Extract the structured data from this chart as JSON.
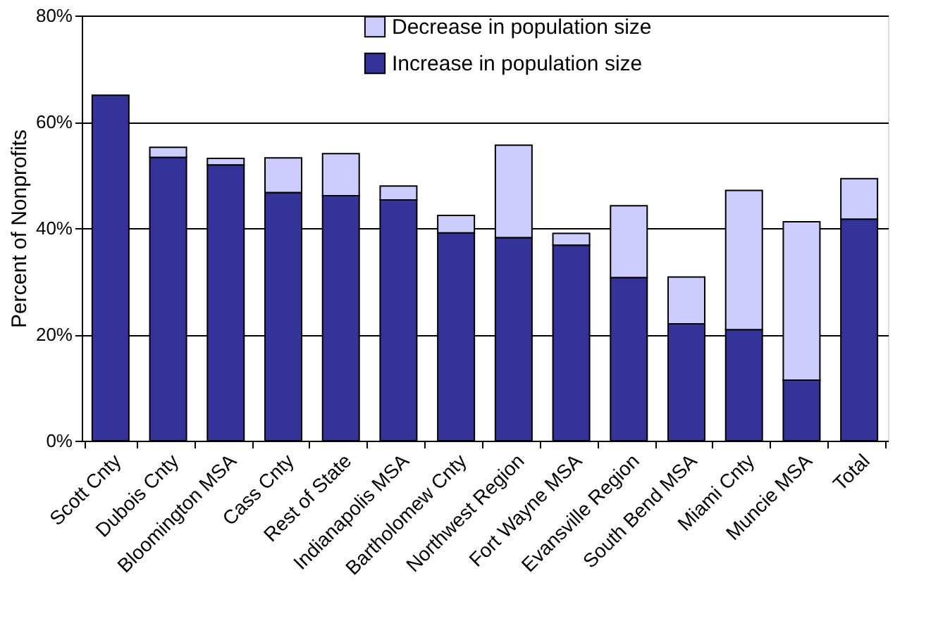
{
  "chart_data": {
    "type": "bar",
    "stacked": true,
    "ylabel": "Percent of Nonprofits",
    "categories": [
      "Scott Cnty",
      "Dubois Cnty",
      "Bloomington MSA",
      "Cass Cnty",
      "Rest of State",
      "Indianapolis MSA",
      "Bartholomew Cnty",
      "Northwest Region",
      "Fort Wayne MSA",
      "Evansville Region",
      "South Bend MSA",
      "Miami Cnty",
      "Muncie MSA",
      "Total"
    ],
    "series": [
      {
        "name": "Increase in population size",
        "color": "#333399",
        "values": [
          65,
          53.3,
          51.9,
          46.7,
          46.1,
          45.3,
          39.1,
          38.2,
          36.8,
          30.7,
          22.0,
          20.9,
          11.4,
          41.7
        ]
      },
      {
        "name": "Decrease in population size",
        "color": "#ccccff",
        "values": [
          null,
          1.9,
          1.2,
          6.5,
          7.9,
          2.6,
          3.3,
          17.4,
          2.2,
          13.5,
          8.8,
          26.2,
          29.8,
          7.6
        ]
      }
    ],
    "ylim": [
      0,
      80
    ],
    "yticks": [
      {
        "value": 0,
        "label": "0%"
      },
      {
        "value": 20,
        "label": "20%"
      },
      {
        "value": 40,
        "label": "40%"
      },
      {
        "value": 60,
        "label": "60%"
      },
      {
        "value": 80,
        "label": "80%"
      }
    ],
    "grid": "y",
    "legend": "top"
  }
}
